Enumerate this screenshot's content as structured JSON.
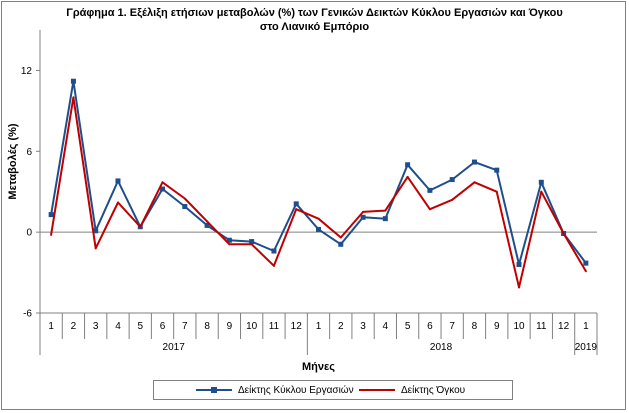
{
  "title_line1": "Γράφημα 1. Εξέλιξη ετήσιων μεταβολών (%) των Γενικών Δεικτών Κύκλου Εργασιών και Όγκου",
  "title_line2": "στο Λιανικό Εμπόριο",
  "chart_data": {
    "type": "line",
    "ylabel": "Μεταβολές  (%)",
    "xlabel": "Μήνες",
    "ylim": [
      -6,
      15
    ],
    "yticks": [
      -6,
      0,
      6,
      12
    ],
    "categories": [
      "1",
      "2",
      "3",
      "4",
      "5",
      "6",
      "7",
      "8",
      "9",
      "10",
      "11",
      "12",
      "1",
      "2",
      "3",
      "4",
      "5",
      "6",
      "7",
      "8",
      "9",
      "10",
      "11",
      "12",
      "1"
    ],
    "year_groups": [
      {
        "label": "2017",
        "count": 12
      },
      {
        "label": "2018",
        "count": 12
      },
      {
        "label": "2019",
        "count": 1
      }
    ],
    "series": [
      {
        "name": "Δείκτης Κύκλου Εργασιών",
        "color": "#1F4E8C",
        "values": [
          1.3,
          11.2,
          0.1,
          3.8,
          0.4,
          3.2,
          1.9,
          0.5,
          -0.6,
          -0.7,
          -1.4,
          2.1,
          0.2,
          -0.9,
          1.1,
          1.0,
          5.0,
          3.1,
          3.9,
          5.2,
          4.6,
          -2.4,
          3.7,
          -0.1,
          -2.3
        ]
      },
      {
        "name": "Δείκτης Όγκου",
        "color": "#C00000",
        "values": [
          -0.2,
          10.0,
          -1.2,
          2.2,
          0.4,
          3.7,
          2.5,
          0.8,
          -0.9,
          -0.9,
          -2.5,
          1.7,
          1.0,
          -0.4,
          1.5,
          1.6,
          4.1,
          1.7,
          2.4,
          3.7,
          3.0,
          -4.1,
          3.0,
          -0.1,
          -2.9
        ]
      }
    ],
    "grid": false,
    "legend_position": "bottom"
  }
}
